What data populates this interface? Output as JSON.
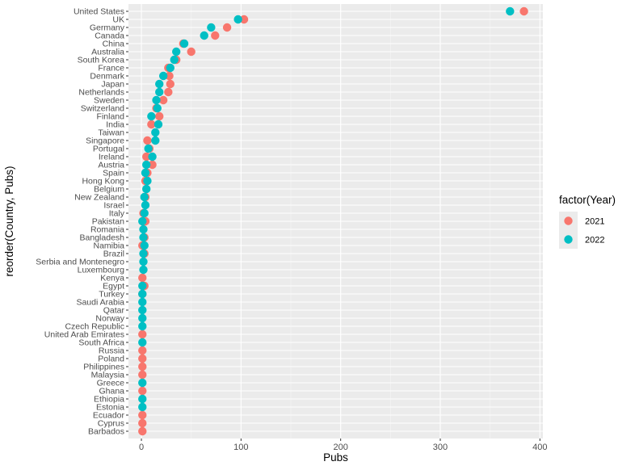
{
  "chart_data": {
    "type": "scatter",
    "xlabel": "Pubs",
    "ylabel": "reorder(Country, Pubs)",
    "xlim": [
      -13,
      403
    ],
    "x_ticks": [
      0,
      100,
      200,
      300,
      400
    ],
    "x_tick_labels": [
      "0",
      "100",
      "200",
      "300",
      "400"
    ],
    "grid": true,
    "legend_placement": "right",
    "legend_title": "factor(Year)",
    "categories": [
      "Barbados",
      "Cyprus",
      "Ecuador",
      "Estonia",
      "Ethiopia",
      "Ghana",
      "Greece",
      "Malaysia",
      "Philippines",
      "Poland",
      "Russia",
      "South Africa",
      "United Arab Emirates",
      "Czech Republic",
      "Norway",
      "Qatar",
      "Saudi Arabia",
      "Turkey",
      "Egypt",
      "Kenya",
      "Luxembourg",
      "Serbia and Montenegro",
      "Brazil",
      "Namibia",
      "Bangladesh",
      "Romania",
      "Pakistan",
      "Italy",
      "Israel",
      "New Zealand",
      "Belgium",
      "Hong Kong",
      "Spain",
      "Austria",
      "Ireland",
      "Portugal",
      "Singapore",
      "Taiwan",
      "India",
      "Finland",
      "Switzerland",
      "Sweden",
      "Netherlands",
      "Japan",
      "Denmark",
      "France",
      "South Korea",
      "Australia",
      "China",
      "Canada",
      "Germany",
      "UK",
      "United States"
    ],
    "series": [
      {
        "name": "2021",
        "color": "#F8766D",
        "values": [
          1,
          1,
          1,
          null,
          null,
          1,
          null,
          1,
          1,
          1,
          1,
          null,
          1,
          null,
          null,
          null,
          null,
          1,
          3,
          1,
          null,
          null,
          3,
          1,
          3,
          null,
          4,
          2,
          null,
          4,
          null,
          4,
          6,
          11,
          5,
          8,
          6,
          null,
          10,
          18,
          15,
          22,
          27,
          29,
          28,
          27,
          35,
          50,
          42,
          74,
          86,
          103,
          384
        ]
      },
      {
        "name": "2022",
        "color": "#00BFC4",
        "values": [
          null,
          null,
          null,
          1,
          1,
          null,
          1,
          null,
          null,
          null,
          null,
          1,
          null,
          1,
          1,
          1,
          1,
          1,
          1,
          null,
          2,
          2,
          2,
          3,
          2,
          2,
          1,
          3,
          4,
          3,
          5,
          6,
          4,
          5,
          11,
          7,
          14,
          14,
          17,
          10,
          16,
          15,
          18,
          18,
          22,
          29,
          33,
          35,
          43,
          63,
          70,
          97,
          370
        ]
      }
    ]
  }
}
